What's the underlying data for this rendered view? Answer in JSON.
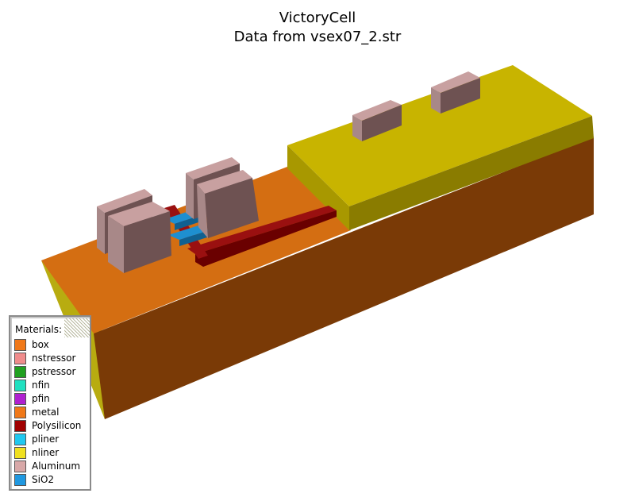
{
  "title": "VictoryCell",
  "subtitle": "Data from vsex07_2.str",
  "legend": {
    "title": "Materials:",
    "items": [
      {
        "label": "box",
        "color": "#f07818"
      },
      {
        "label": "nstressor",
        "color": "#f08c8c"
      },
      {
        "label": "pstressor",
        "color": "#20a020"
      },
      {
        "label": "nfin",
        "color": "#20e0c0"
      },
      {
        "label": "pfin",
        "color": "#b020d0"
      },
      {
        "label": "metal",
        "color": "#f07818"
      },
      {
        "label": "Polysilicon",
        "color": "#a00000"
      },
      {
        "label": "pliner",
        "color": "#20c8f0"
      },
      {
        "label": "nliner",
        "color": "#f0e020"
      },
      {
        "label": "Aluminum",
        "color": "#d8a8a8"
      },
      {
        "label": "SiO2",
        "color": "#2098e0"
      }
    ]
  },
  "colors": {
    "box_top": "#d46e12",
    "box_front": "#7a3a06",
    "box_left": "#b8ac10",
    "metal_top": "#c8b400",
    "metal_front": "#8a7c00",
    "aluminum_top": "#c8a0a0",
    "aluminum_front": "#6e5252",
    "poly_top": "#9a1010",
    "poly_front": "#6a0000",
    "sio2_top": "#1e8fd0",
    "sio2_front": "#106090"
  }
}
